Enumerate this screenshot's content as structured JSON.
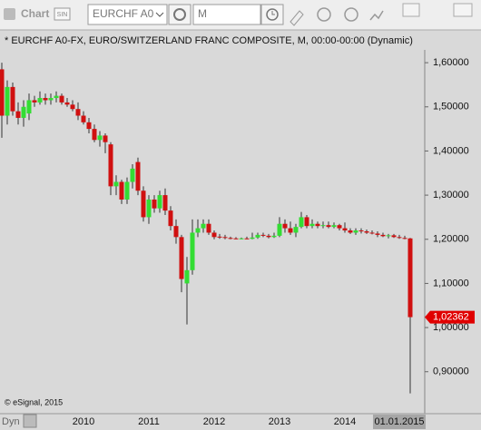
{
  "toolbar": {
    "title": "Chart",
    "badge": "SIN",
    "symbol": "EURCHF A0",
    "interval": "M"
  },
  "footer": {
    "mode": "Dyn"
  },
  "chart_data": {
    "type": "candlestick",
    "title": "* EURCHF A0-FX, EURO/SWITZERLAND FRANC COMPOSITE, M, 00:00-00:00 (Dynamic)",
    "annotations": [
      "© eSignal, 2015"
    ],
    "categories": [
      null,
      null,
      null,
      null,
      null,
      null,
      null,
      null,
      null,
      null,
      null,
      null,
      null,
      null,
      null,
      "2010",
      null,
      null,
      null,
      null,
      null,
      null,
      null,
      null,
      null,
      null,
      null,
      "2011",
      null,
      null,
      null,
      null,
      null,
      null,
      null,
      null,
      null,
      null,
      null,
      "2012",
      null,
      null,
      null,
      null,
      null,
      null,
      null,
      null,
      null,
      null,
      null,
      "2013",
      null,
      null,
      null,
      null,
      null,
      null,
      null,
      null,
      null,
      null,
      null,
      "2014",
      null,
      null,
      null,
      null,
      null,
      null,
      null,
      null,
      null,
      null,
      null,
      "01.01.2015"
    ],
    "open": [
      1.585,
      1.48,
      1.545,
      1.49,
      1.475,
      1.485,
      1.515,
      1.51,
      1.52,
      1.515,
      1.52,
      1.525,
      1.51,
      1.505,
      1.495,
      1.48,
      1.465,
      1.45,
      1.425,
      1.435,
      1.415,
      1.32,
      1.33,
      1.29,
      1.33,
      1.375,
      1.31,
      1.25,
      1.29,
      1.27,
      1.3,
      1.265,
      1.23,
      1.205,
      1.1,
      1.13,
      1.215,
      1.225,
      1.235,
      1.215,
      1.206,
      1.205,
      1.203,
      1.202,
      1.201,
      1.202,
      1.201,
      1.204,
      1.21,
      1.208,
      1.205,
      1.208,
      1.235,
      1.225,
      1.215,
      1.228,
      1.25,
      1.23,
      1.235,
      1.23,
      1.232,
      1.228,
      1.232,
      1.225,
      1.22,
      1.215,
      1.22,
      1.218,
      1.215,
      1.213,
      1.21,
      1.207,
      1.209,
      1.205,
      1.203,
      1.202
    ],
    "high": [
      1.6,
      1.56,
      1.555,
      1.51,
      1.515,
      1.53,
      1.525,
      1.535,
      1.53,
      1.53,
      1.535,
      1.53,
      1.52,
      1.515,
      1.51,
      1.49,
      1.475,
      1.46,
      1.445,
      1.44,
      1.42,
      1.345,
      1.335,
      1.34,
      1.37,
      1.385,
      1.32,
      1.3,
      1.3,
      1.31,
      1.315,
      1.275,
      1.245,
      1.21,
      1.16,
      1.245,
      1.245,
      1.245,
      1.245,
      1.22,
      1.212,
      1.21,
      1.206,
      1.205,
      1.204,
      1.206,
      1.215,
      1.215,
      1.215,
      1.212,
      1.215,
      1.25,
      1.245,
      1.24,
      1.235,
      1.262,
      1.255,
      1.245,
      1.24,
      1.24,
      1.24,
      1.238,
      1.235,
      1.238,
      1.225,
      1.225,
      1.225,
      1.222,
      1.22,
      1.218,
      1.215,
      1.212,
      1.212,
      1.21,
      1.208,
      1.203
    ],
    "low": [
      1.43,
      1.46,
      1.48,
      1.46,
      1.455,
      1.47,
      1.5,
      1.505,
      1.505,
      1.505,
      1.51,
      1.505,
      1.5,
      1.49,
      1.47,
      1.46,
      1.44,
      1.42,
      1.41,
      1.395,
      1.3,
      1.3,
      1.28,
      1.28,
      1.315,
      1.3,
      1.24,
      1.235,
      1.26,
      1.26,
      1.255,
      1.22,
      1.19,
      1.08,
      1.007,
      1.12,
      1.205,
      1.215,
      1.21,
      1.2,
      1.201,
      1.2,
      1.2,
      1.2,
      1.2,
      1.2,
      1.2,
      1.201,
      1.205,
      1.202,
      1.203,
      1.205,
      1.215,
      1.21,
      1.205,
      1.225,
      1.225,
      1.225,
      1.225,
      1.225,
      1.225,
      1.225,
      1.22,
      1.215,
      1.212,
      1.21,
      1.213,
      1.212,
      1.211,
      1.205,
      1.205,
      1.202,
      1.203,
      1.201,
      1.2,
      0.851
    ],
    "close": [
      1.48,
      1.545,
      1.49,
      1.475,
      1.5,
      1.515,
      1.51,
      1.52,
      1.515,
      1.52,
      1.525,
      1.51,
      1.505,
      1.495,
      1.48,
      1.465,
      1.45,
      1.425,
      1.435,
      1.42,
      1.32,
      1.33,
      1.29,
      1.33,
      1.36,
      1.31,
      1.25,
      1.29,
      1.27,
      1.3,
      1.265,
      1.23,
      1.205,
      1.11,
      1.13,
      1.215,
      1.225,
      1.235,
      1.215,
      1.205,
      1.205,
      1.203,
      1.202,
      1.201,
      1.202,
      1.201,
      1.204,
      1.21,
      1.208,
      1.205,
      1.208,
      1.235,
      1.225,
      1.215,
      1.228,
      1.25,
      1.23,
      1.235,
      1.23,
      1.232,
      1.228,
      1.232,
      1.225,
      1.22,
      1.215,
      1.22,
      1.218,
      1.215,
      1.213,
      1.21,
      1.207,
      1.209,
      1.205,
      1.203,
      1.202,
      1.02362
    ],
    "last_value_label": "1,02362",
    "up_color": "#33dd33",
    "down_color": "#d01010",
    "wick_color": "#333333",
    "last_color": "#e00000",
    "ylim": [
      0.807,
      1.629
    ],
    "yticks": [
      {
        "value": 0.9,
        "label": "0,90000"
      },
      {
        "value": 1.0,
        "label": "1,00000"
      },
      {
        "value": 1.1,
        "label": "1,10000"
      },
      {
        "value": 1.2,
        "label": "1,20000"
      },
      {
        "value": 1.3,
        "label": "1,30000"
      },
      {
        "value": 1.4,
        "label": "1,40000"
      },
      {
        "value": 1.5,
        "label": "1,50000"
      },
      {
        "value": 1.6,
        "label": "1,60000"
      }
    ],
    "grid": false
  }
}
